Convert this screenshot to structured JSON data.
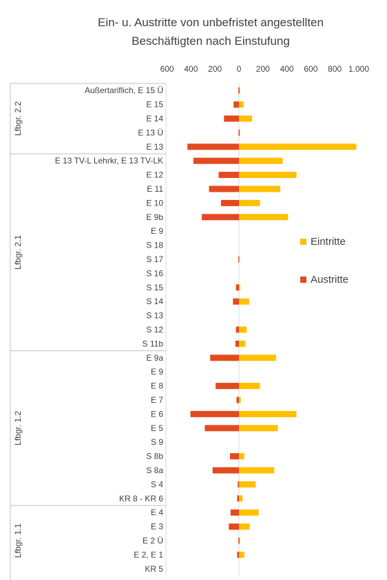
{
  "chart_data": {
    "type": "bar",
    "orientation": "horizontal",
    "title": "Ein- u. Austritte von unbefristet angestellten Beschäftigten nach Einstufung",
    "title_lines": [
      "Ein- u. Austritte von unbefristet angestellten",
      "Beschäftigten nach Einstufung"
    ],
    "xlim": [
      -600,
      1000
    ],
    "x_ticks": [
      -600,
      -400,
      -200,
      0,
      200,
      400,
      600,
      800,
      1000
    ],
    "x_tick_labels": [
      "600",
      "400",
      "200",
      "0",
      "200",
      "400",
      "600",
      "800",
      "1.000"
    ],
    "grid": false,
    "legend_position": "right",
    "groups": [
      {
        "label": "Lfbgr. 2.2",
        "start": 0,
        "end": 4
      },
      {
        "label": "Lfbgr. 2.1",
        "start": 5,
        "end": 18
      },
      {
        "label": "Lfbgr. 1.2",
        "start": 19,
        "end": 29
      },
      {
        "label": "Lfbgr. 1.1",
        "start": 30,
        "end": 34
      }
    ],
    "categories": [
      "Außertariflich, E 15 Ü",
      "E 15",
      "E 14",
      "E 13 Ü",
      "E 13",
      "E 13 TV-L Lehrkr, E 13 TV-LK",
      "E 12",
      "E 11",
      "E 10",
      "E 9b",
      "E 9",
      "S 18",
      "S 17",
      "S 16",
      "S 15",
      "S 14",
      "S 13",
      "S 12",
      "S 11b",
      "E 9a",
      "E 9",
      "E 8",
      "E 7",
      "E 6",
      "E 5",
      "S 9",
      "S 8b",
      "S 8a",
      "S 4",
      "KR 8 - KR 6",
      "E 4",
      "E 3",
      "E 2 Ü",
      "E 2, E 1",
      "KR 5"
    ],
    "series": [
      {
        "name": "Eintritte",
        "color": "#FFC000",
        "values": [
          2,
          40,
          110,
          1,
          980,
          365,
          480,
          345,
          175,
          410,
          0,
          0,
          0,
          0,
          10,
          85,
          0,
          65,
          55,
          310,
          0,
          175,
          15,
          480,
          325,
          0,
          45,
          295,
          140,
          30,
          165,
          90,
          2,
          45,
          0
        ]
      },
      {
        "name": "Austritte",
        "color": "#E34A1F",
        "values": [
          -5,
          -45,
          -125,
          -3,
          -430,
          -380,
          -170,
          -250,
          -150,
          -310,
          0,
          0,
          -5,
          0,
          -25,
          -50,
          0,
          -25,
          -30,
          -240,
          0,
          -195,
          -20,
          -405,
          -285,
          0,
          -75,
          -220,
          -10,
          -15,
          -70,
          -85,
          -5,
          -15,
          0
        ]
      }
    ]
  }
}
